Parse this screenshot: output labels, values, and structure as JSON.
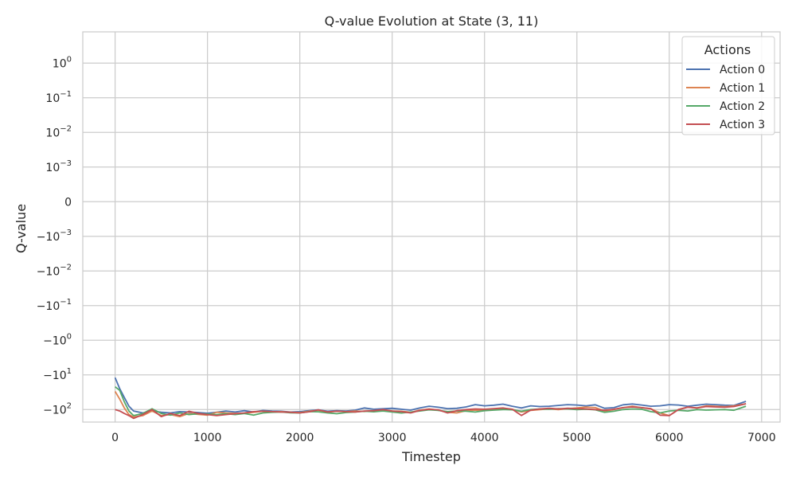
{
  "chart_data": {
    "type": "line",
    "title": "Q-value Evolution at State (3, 11)",
    "xlabel": "Timestep",
    "ylabel": "Q-value",
    "xlim": [
      -350,
      7200
    ],
    "ylim": [
      -230,
      8
    ],
    "yscale": "symlog",
    "linthresh": 0.001,
    "grid": true,
    "legend": {
      "title": "Actions",
      "placement": "top-right"
    },
    "x_ticks": [
      {
        "value": 0,
        "label": "0"
      },
      {
        "value": 1000,
        "label": "1000"
      },
      {
        "value": 2000,
        "label": "2000"
      },
      {
        "value": 3000,
        "label": "3000"
      },
      {
        "value": 4000,
        "label": "4000"
      },
      {
        "value": 5000,
        "label": "5000"
      },
      {
        "value": 6000,
        "label": "6000"
      },
      {
        "value": 7000,
        "label": "7000"
      }
    ],
    "y_ticks": [
      {
        "value": 1,
        "base": "10",
        "exp": "0"
      },
      {
        "value": 0.1,
        "base": "10",
        "exp": "−1"
      },
      {
        "value": 0.01,
        "base": "10",
        "exp": "−2"
      },
      {
        "value": 0.001,
        "base": "10",
        "exp": "−3"
      },
      {
        "value": 0,
        "base": "0",
        "exp": ""
      },
      {
        "value": -0.001,
        "base": "−10",
        "exp": "−3"
      },
      {
        "value": -0.01,
        "base": "−10",
        "exp": "−2"
      },
      {
        "value": -0.1,
        "base": "−10",
        "exp": "−1"
      },
      {
        "value": -1,
        "base": "−10",
        "exp": "0"
      },
      {
        "value": -10,
        "base": "−10",
        "exp": "1"
      },
      {
        "value": -100,
        "base": "−10",
        "exp": "2"
      }
    ],
    "series": [
      {
        "name": "Action 0",
        "color": "#4c72b0",
        "x": [
          0,
          50,
          100,
          150,
          200,
          300,
          400,
          500,
          600,
          700,
          800,
          900,
          1000,
          1100,
          1200,
          1300,
          1400,
          1500,
          1600,
          1700,
          1800,
          1900,
          2000,
          2100,
          2200,
          2300,
          2400,
          2500,
          2600,
          2700,
          2800,
          2900,
          3000,
          3100,
          3200,
          3300,
          3400,
          3500,
          3600,
          3700,
          3800,
          3900,
          4000,
          4100,
          4200,
          4300,
          4400,
          4500,
          4600,
          4700,
          4800,
          4900,
          5000,
          5100,
          5200,
          5300,
          5400,
          5500,
          5600,
          5700,
          5800,
          5900,
          6000,
          6100,
          6200,
          6300,
          6400,
          6500,
          6600,
          6700,
          6830
        ],
        "y": [
          -12,
          -25,
          -45,
          -80,
          -110,
          -125,
          -110,
          -120,
          -125,
          -115,
          -118,
          -122,
          -128,
          -120,
          -110,
          -118,
          -108,
          -118,
          -106,
          -110,
          -112,
          -118,
          -115,
          -108,
          -102,
          -112,
          -108,
          -110,
          -104,
          -90,
          -98,
          -95,
          -92,
          -98,
          -104,
          -90,
          -80,
          -86,
          -94,
          -92,
          -84,
          -72,
          -78,
          -75,
          -70,
          -80,
          -90,
          -78,
          -82,
          -80,
          -76,
          -72,
          -74,
          -78,
          -73,
          -92,
          -88,
          -73,
          -69,
          -74,
          -80,
          -78,
          -72,
          -74,
          -80,
          -75,
          -70,
          -72,
          -75,
          -76,
          -58
        ]
      },
      {
        "name": "Action 1",
        "color": "#dd8452",
        "x": [
          0,
          50,
          100,
          150,
          200,
          300,
          400,
          500,
          600,
          700,
          800,
          900,
          1000,
          1100,
          1200,
          1300,
          1400,
          1500,
          1600,
          1700,
          1800,
          1900,
          2000,
          2100,
          2200,
          2300,
          2400,
          2500,
          2600,
          2700,
          2800,
          2900,
          3000,
          3100,
          3200,
          3300,
          3400,
          3500,
          3600,
          3700,
          3800,
          3900,
          4000,
          4100,
          4200,
          4300,
          4400,
          4500,
          4600,
          4700,
          4800,
          4900,
          5000,
          5100,
          5200,
          5300,
          5400,
          5500,
          5600,
          5700,
          5800,
          5900,
          6000,
          6100,
          6200,
          6300,
          6400,
          6500,
          6600,
          6700,
          6830
        ],
        "y": [
          -30,
          -50,
          -90,
          -140,
          -165,
          -150,
          -110,
          -150,
          -140,
          -160,
          -130,
          -138,
          -145,
          -120,
          -125,
          -130,
          -128,
          -120,
          -112,
          -118,
          -115,
          -120,
          -122,
          -112,
          -105,
          -118,
          -112,
          -115,
          -110,
          -114,
          -108,
          -102,
          -110,
          -112,
          -120,
          -104,
          -96,
          -105,
          -120,
          -125,
          -108,
          -104,
          -106,
          -100,
          -94,
          -98,
          -118,
          -106,
          -100,
          -96,
          -100,
          -94,
          -90,
          -85,
          -88,
          -110,
          -100,
          -88,
          -80,
          -88,
          -95,
          -125,
          -150,
          -100,
          -85,
          -90,
          -78,
          -80,
          -83,
          -78,
          -68
        ]
      },
      {
        "name": "Action 2",
        "color": "#55a868",
        "x": [
          0,
          50,
          100,
          150,
          200,
          300,
          400,
          500,
          600,
          700,
          800,
          900,
          1000,
          1100,
          1200,
          1300,
          1400,
          1500,
          1600,
          1700,
          1800,
          1900,
          2000,
          2100,
          2200,
          2300,
          2400,
          2500,
          2600,
          2700,
          2800,
          2900,
          3000,
          3100,
          3200,
          3300,
          3400,
          3500,
          3600,
          3700,
          3800,
          3900,
          4000,
          4100,
          4200,
          4300,
          4400,
          4500,
          4600,
          4700,
          4800,
          4900,
          5000,
          5100,
          5200,
          5300,
          5400,
          5500,
          5600,
          5700,
          5800,
          5900,
          6000,
          6100,
          6200,
          6300,
          6400,
          6500,
          6600,
          6700,
          6830
        ],
        "y": [
          -22,
          -28,
          -60,
          -110,
          -150,
          -130,
          -95,
          -130,
          -145,
          -125,
          -140,
          -132,
          -135,
          -140,
          -132,
          -140,
          -130,
          -145,
          -125,
          -120,
          -118,
          -124,
          -125,
          -115,
          -116,
          -125,
          -132,
          -122,
          -118,
          -112,
          -116,
          -110,
          -118,
          -126,
          -118,
          -110,
          -102,
          -106,
          -115,
          -110,
          -112,
          -118,
          -108,
          -104,
          -100,
          -102,
          -112,
          -100,
          -96,
          -98,
          -94,
          -96,
          -100,
          -98,
          -102,
          -120,
          -112,
          -100,
          -96,
          -98,
          -115,
          -125,
          -110,
          -105,
          -110,
          -100,
          -104,
          -102,
          -100,
          -105,
          -80
        ]
      },
      {
        "name": "Action 3",
        "color": "#c44e52",
        "x": [
          0,
          50,
          100,
          150,
          200,
          300,
          400,
          500,
          600,
          700,
          800,
          900,
          1000,
          1100,
          1200,
          1300,
          1400,
          1500,
          1600,
          1700,
          1800,
          1900,
          2000,
          2100,
          2200,
          2300,
          2400,
          2500,
          2600,
          2700,
          2800,
          2900,
          3000,
          3100,
          3200,
          3300,
          3400,
          3500,
          3600,
          3700,
          3800,
          3900,
          4000,
          4100,
          4200,
          4300,
          4400,
          4500,
          4600,
          4700,
          4800,
          4900,
          5000,
          5100,
          5200,
          5300,
          5400,
          5500,
          5600,
          5700,
          5800,
          5900,
          6000,
          6100,
          6200,
          6300,
          6400,
          6500,
          6600,
          6700,
          6830
        ],
        "y": [
          -100,
          -110,
          -130,
          -150,
          -180,
          -140,
          -100,
          -160,
          -130,
          -150,
          -112,
          -130,
          -140,
          -150,
          -140,
          -132,
          -125,
          -115,
          -112,
          -115,
          -118,
          -120,
          -125,
          -116,
          -102,
          -118,
          -112,
          -115,
          -118,
          -110,
          -108,
          -100,
          -110,
          -115,
          -125,
          -106,
          -98,
          -102,
          -125,
          -108,
          -100,
          -96,
          -98,
          -94,
          -90,
          -98,
          -148,
          -104,
          -96,
          -92,
          -96,
          -92,
          -94,
          -96,
          -100,
          -105,
          -98,
          -88,
          -84,
          -88,
          -94,
          -145,
          -150,
          -100,
          -85,
          -90,
          -82,
          -84,
          -86,
          -82,
          -68
        ]
      }
    ]
  }
}
